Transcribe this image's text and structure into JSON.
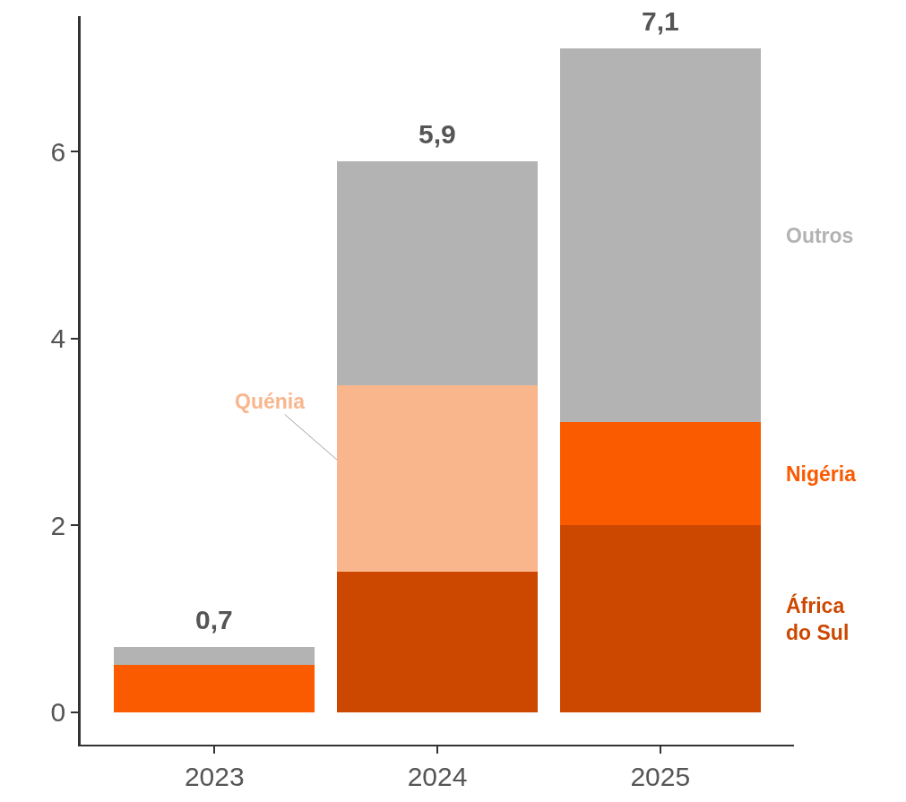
{
  "chart_data": {
    "type": "bar",
    "stacked": true,
    "categories": [
      "2023",
      "2024",
      "2025"
    ],
    "series": [
      {
        "name": "África do Sul",
        "color": "#cc4800",
        "values": [
          null,
          1.5,
          2.0
        ]
      },
      {
        "name": "Nigéria",
        "color": "#fa5a00",
        "values": [
          0.5,
          null,
          1.1
        ]
      },
      {
        "name": "Quénia",
        "color": "#f9b68d",
        "values": [
          null,
          2.0,
          null
        ]
      },
      {
        "name": "Outros",
        "color": "#b3b3b3",
        "values": [
          0.2,
          2.4,
          4.0
        ]
      }
    ],
    "totals": [
      "0,7",
      "5,9",
      "7,1"
    ],
    "ylim": [
      -0.35,
      7.45
    ],
    "yticks": [
      0,
      2,
      4,
      6
    ],
    "grid": false,
    "legend": false
  }
}
